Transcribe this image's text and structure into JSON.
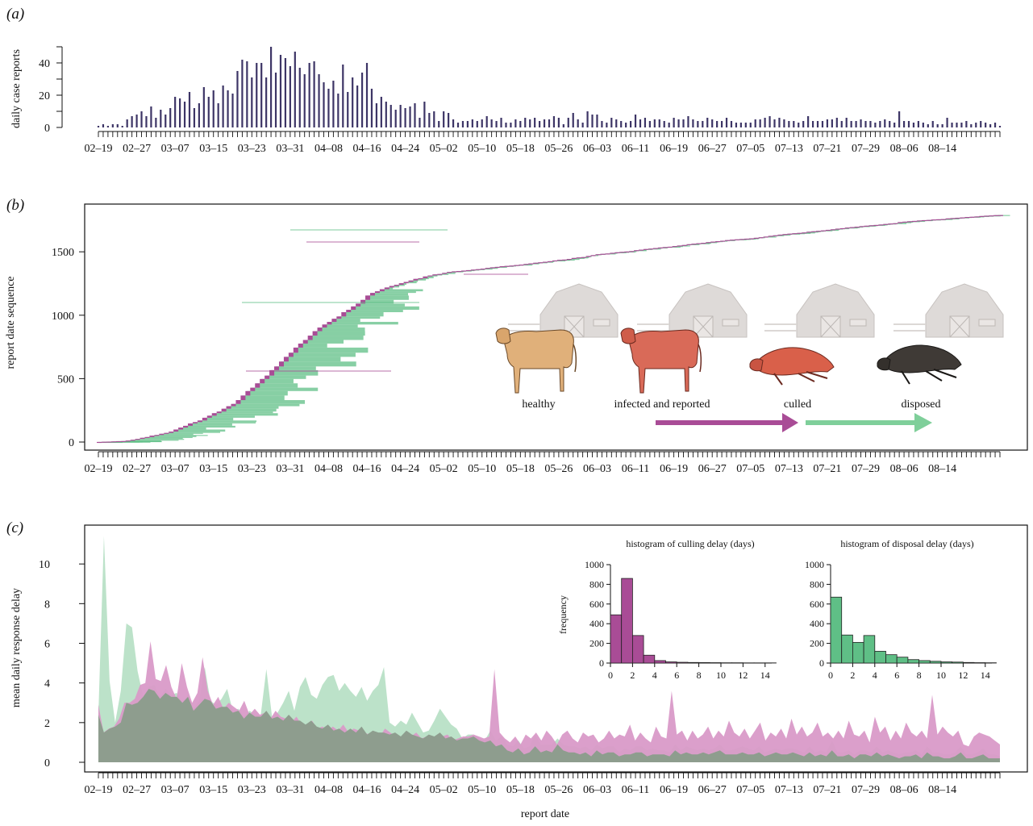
{
  "chart_data": [
    {
      "panel_label": "(a)",
      "type": "bar",
      "ylabel": "daily case reports",
      "xlabel": "",
      "ylim": [
        0,
        50
      ],
      "yticks": [
        0,
        20,
        40
      ],
      "xtick_labels": [
        "02–19",
        "02–27",
        "03–07",
        "03–15",
        "03–23",
        "03–31",
        "04–08",
        "04–16",
        "04–24",
        "05–02",
        "05–10",
        "05–18",
        "05–26",
        "06–03",
        "06–11",
        "06–19",
        "06–27",
        "07–05",
        "07–13",
        "07–21",
        "07–29",
        "08–06",
        "08–14"
      ],
      "color": "#3d3566",
      "values": [
        1,
        2,
        1,
        2,
        2,
        1,
        5,
        7,
        8,
        10,
        7,
        13,
        6,
        11,
        8,
        12,
        19,
        18,
        16,
        22,
        12,
        15,
        25,
        19,
        23,
        15,
        26,
        23,
        21,
        35,
        42,
        41,
        31,
        40,
        40,
        31,
        50,
        34,
        45,
        43,
        38,
        47,
        37,
        33,
        40,
        41,
        33,
        28,
        24,
        29,
        21,
        39,
        22,
        31,
        26,
        34,
        40,
        24,
        15,
        19,
        16,
        14,
        11,
        14,
        12,
        13,
        15,
        6,
        16,
        9,
        10,
        4,
        10,
        9,
        5,
        3,
        4,
        4,
        5,
        4,
        5,
        7,
        5,
        4,
        6,
        3,
        3,
        5,
        4,
        6,
        5,
        6,
        4,
        5,
        5,
        7,
        6,
        2,
        6,
        9,
        5,
        3,
        10,
        8,
        8,
        4,
        3,
        6,
        5,
        4,
        3,
        4,
        8,
        5,
        6,
        4,
        5,
        5,
        4,
        3,
        6,
        5,
        5,
        7,
        5,
        4,
        4,
        6,
        5,
        4,
        4,
        6,
        4,
        3,
        3,
        3,
        3,
        5,
        5,
        6,
        7,
        5,
        6,
        5,
        4,
        4,
        3,
        4,
        7,
        4,
        4,
        4,
        5,
        5,
        6,
        4,
        6,
        4,
        4,
        5,
        4,
        4,
        3,
        4,
        5,
        4,
        3,
        10,
        4,
        4,
        3,
        4,
        3,
        2,
        4,
        2,
        2,
        6,
        3,
        3,
        3,
        4,
        2,
        3,
        4,
        3,
        2,
        3,
        1
      ]
    },
    {
      "panel_label": "(b)",
      "type": "line",
      "ylabel": "report date sequence",
      "xlabel": "",
      "ylim": [
        0,
        1800
      ],
      "yticks": [
        0,
        500,
        1000,
        1500
      ],
      "xtick_labels": [
        "02–19",
        "02–27",
        "03–07",
        "03–15",
        "03–23",
        "03–31",
        "04–08",
        "04–16",
        "04–24",
        "05–02",
        "05–10",
        "05–18",
        "05–26",
        "06–03",
        "06–11",
        "06–19",
        "06–27",
        "07–05",
        "07–13",
        "07–21",
        "07–29",
        "08–06",
        "08–14"
      ],
      "colors": {
        "culled": "#a94c96",
        "disposed": "#5fbf86"
      },
      "inset_labels": [
        "healthy",
        "infected and reported",
        "culled",
        "disposed"
      ],
      "description_series": "cumulative reports by date with culling (purple) and disposal (green) delay segments"
    },
    {
      "panel_label": "(c)",
      "type": "area",
      "ylabel": "mean daily response delay",
      "xlabel": "report date",
      "ylim": [
        0,
        12
      ],
      "yticks": [
        0,
        2,
        4,
        6,
        8,
        10
      ],
      "xtick_labels": [
        "02–19",
        "02–27",
        "03–07",
        "03–15",
        "03–23",
        "03–31",
        "04–08",
        "04–16",
        "04–24",
        "05–02",
        "05–10",
        "05–18",
        "05–26",
        "06–03",
        "06–11",
        "06–19",
        "06–27",
        "07–05",
        "07–13",
        "07–21",
        "07–29",
        "08–06",
        "08–14"
      ],
      "series": [
        {
          "color": "#b8e0c6",
          "values": [
            2.4,
            11.4,
            4.1,
            2.0,
            3.6,
            7.0,
            6.8,
            4.6,
            3.3,
            3.8,
            3.9,
            3.3,
            3.7,
            3.4,
            3.5,
            3.0,
            3.4,
            2.7,
            3.1,
            4.8,
            3.1,
            2.9,
            3.2,
            3.7,
            2.6,
            2.7,
            2.3,
            2.6,
            2.4,
            2.4,
            4.7,
            2.3,
            2.5,
            3.0,
            3.6,
            2.6,
            3.8,
            4.3,
            3.4,
            3.2,
            3.9,
            4.3,
            4.4,
            3.6,
            4.0,
            3.6,
            3.3,
            3.8,
            3.1,
            3.6,
            3.9,
            4.8,
            2.0,
            1.8,
            2.1,
            1.9,
            2.5,
            2.0,
            1.5,
            1.6,
            2.1,
            2.7,
            2.3,
            1.9,
            1.7,
            1.2,
            1.4,
            1.4,
            1.2,
            1.1,
            1.6,
            1.1,
            1.3,
            0.9,
            0.8,
            1.1,
            0.7,
            0.8,
            1.4,
            0.9,
            0.9,
            0.9,
            1.2,
            0.9,
            0.8,
            0.8,
            0.7,
            0.8,
            0.6,
            0.9,
            0.7,
            0.8,
            0.8,
            0.5,
            0.7,
            0.6,
            0.8,
            0.8,
            0.6,
            0.7,
            0.6,
            0.6,
            0.5,
            0.9,
            0.6,
            0.8,
            0.7,
            0.6,
            0.7,
            0.6,
            0.7,
            0.9,
            0.6,
            0.6,
            0.7,
            0.8,
            0.7,
            0.6,
            0.8,
            0.5,
            0.6,
            0.7,
            0.6,
            0.7,
            0.7,
            0.6,
            0.5,
            0.8,
            0.5,
            0.6,
            0.5,
            1.1,
            0.5,
            0.5,
            0.6,
            0.4,
            0.6,
            0.6,
            0.5,
            0.8,
            0.5,
            0.6,
            0.5,
            0.4,
            0.5,
            0.5,
            0.6,
            0.4,
            0.8,
            0.5,
            0.5,
            0.4,
            0.4,
            0.5,
            0.8,
            0.4,
            0.4,
            0.5,
            0.7,
            0.4,
            0.4,
            0.3
          ]
        },
        {
          "color": "#d99ac8",
          "values": [
            2.9,
            1.5,
            1.7,
            1.8,
            2.2,
            3.0,
            3.0,
            3.2,
            3.9,
            4.0,
            6.1,
            4.2,
            4.1,
            4.9,
            3.8,
            3.2,
            5.0,
            3.8,
            3.0,
            3.5,
            5.3,
            3.6,
            2.9,
            3.3,
            2.7,
            3.0,
            2.8,
            2.6,
            3.1,
            2.4,
            2.7,
            2.4,
            2.5,
            2.2,
            2.6,
            2.3,
            2.2,
            2.0,
            2.3,
            1.9,
            1.8,
            2.1,
            1.7,
            1.8,
            1.6,
            1.8,
            1.6,
            1.9,
            1.5,
            1.7,
            1.6,
            1.5,
            1.4,
            1.5,
            1.3,
            1.7,
            1.5,
            1.3,
            1.2,
            1.4,
            1.3,
            1.5,
            1.2,
            1.3,
            1.1,
            1.2,
            1.3,
            1.4,
            1.1,
            1.2,
            1.3,
            1.3,
            1.4,
            1.3,
            1.2,
            1.3,
            4.7,
            1.5,
            1.2,
            1.0,
            1.3,
            0.9,
            1.4,
            1.2,
            1.5,
            1.1,
            1.6,
            1.3,
            0.9,
            1.4,
            1.6,
            1.2,
            1.0,
            1.5,
            1.3,
            1.4,
            1.0,
            1.2,
            1.6,
            1.2,
            1.4,
            1.3,
            1.9,
            1.1,
            1.5,
            1.2,
            1.0,
            1.8,
            1.3,
            1.2,
            3.6,
            1.4,
            1.6,
            1.1,
            1.6,
            1.2,
            1.4,
            1.8,
            1.2,
            1.6,
            1.3,
            2.1,
            1.5,
            1.3,
            1.7,
            1.2,
            1.6,
            2.0,
            1.1,
            1.5,
            1.3,
            1.7,
            1.2,
            2.2,
            1.4,
            1.8,
            1.3,
            1.5,
            2.0,
            1.3,
            1.5,
            1.2,
            1.6,
            1.2,
            2.1,
            1.4,
            1.3,
            1.6,
            1.0,
            2.3,
            1.5,
            1.8,
            1.1,
            1.6,
            1.2,
            2.0,
            1.5,
            1.3,
            1.6,
            1.2,
            3.4,
            1.4,
            1.8,
            1.5,
            1.3,
            1.6,
            0.9,
            0.8,
            1.3,
            1.5,
            1.4,
            1.3,
            1.1,
            0.9
          ]
        },
        {
          "color": "#8e9d8e",
          "values": [
            2.4,
            1.5,
            1.7,
            1.8,
            2.0,
            3.0,
            2.9,
            3.0,
            3.3,
            3.7,
            3.6,
            3.2,
            3.5,
            3.3,
            3.3,
            3.0,
            3.3,
            2.6,
            2.9,
            3.2,
            3.1,
            2.7,
            2.8,
            2.8,
            2.5,
            2.6,
            2.2,
            2.5,
            2.3,
            2.3,
            2.6,
            2.2,
            2.3,
            2.1,
            2.4,
            2.1,
            2.1,
            1.9,
            2.1,
            1.8,
            1.7,
            1.9,
            1.6,
            1.7,
            1.5,
            1.7,
            1.5,
            1.8,
            1.4,
            1.6,
            1.5,
            1.5,
            1.4,
            1.5,
            1.3,
            1.6,
            1.4,
            1.3,
            1.2,
            1.4,
            1.3,
            1.5,
            1.2,
            1.3,
            1.1,
            1.2,
            1.2,
            1.3,
            1.1,
            1.0,
            1.1,
            0.8,
            0.9,
            0.6,
            0.5,
            0.7,
            0.4,
            0.5,
            0.8,
            0.5,
            0.6,
            0.5,
            0.9,
            0.6,
            0.5,
            0.5,
            0.4,
            0.5,
            0.3,
            0.6,
            0.4,
            0.5,
            0.5,
            0.3,
            0.4,
            0.4,
            0.5,
            0.5,
            0.3,
            0.4,
            0.4,
            0.4,
            0.3,
            0.6,
            0.4,
            0.5,
            0.4,
            0.4,
            0.5,
            0.4,
            0.5,
            0.6,
            0.4,
            0.4,
            0.4,
            0.5,
            0.4,
            0.4,
            0.5,
            0.3,
            0.4,
            0.5,
            0.4,
            0.4,
            0.5,
            0.4,
            0.3,
            0.5,
            0.3,
            0.4,
            0.3,
            0.6,
            0.3,
            0.3,
            0.4,
            0.2,
            0.4,
            0.4,
            0.3,
            0.5,
            0.3,
            0.4,
            0.3,
            0.2,
            0.3,
            0.3,
            0.4,
            0.2,
            0.5,
            0.3,
            0.3,
            0.2,
            0.2,
            0.3,
            0.5,
            0.2,
            0.2,
            0.3,
            0.4,
            0.2,
            0.2,
            0.2
          ]
        }
      ],
      "insets": [
        {
          "type": "bar",
          "title": "histogram of culling delay (days)",
          "ylabel": "frequency",
          "color": "#a94c96",
          "bins": [
            0,
            1,
            2,
            3,
            4,
            5,
            6,
            7,
            8,
            9,
            10,
            11,
            12,
            13,
            14
          ],
          "values": [
            490,
            860,
            280,
            80,
            25,
            12,
            8,
            6,
            5,
            4,
            3,
            3,
            2,
            2,
            2
          ],
          "xticks": [
            0,
            2,
            4,
            6,
            8,
            10,
            12,
            14
          ],
          "yticks": [
            0,
            200,
            400,
            600,
            800,
            1000
          ],
          "ylim": [
            0,
            1000
          ]
        },
        {
          "type": "bar",
          "title": "histogram of disposal delay (days)",
          "ylabel": "",
          "color": "#5fbf86",
          "bins": [
            0,
            1,
            2,
            3,
            4,
            5,
            6,
            7,
            8,
            9,
            10,
            11,
            12,
            13,
            14
          ],
          "values": [
            670,
            285,
            210,
            280,
            120,
            85,
            60,
            35,
            25,
            18,
            12,
            10,
            6,
            4,
            3
          ],
          "xticks": [
            0,
            2,
            4,
            6,
            8,
            10,
            12,
            14
          ],
          "yticks": [
            0,
            200,
            400,
            600,
            800,
            1000
          ],
          "ylim": [
            0,
            1000
          ]
        }
      ]
    }
  ]
}
